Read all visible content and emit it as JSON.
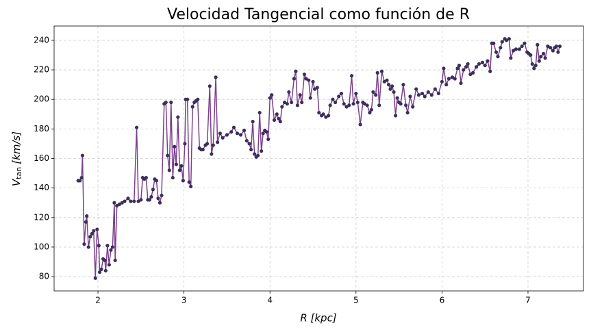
{
  "chart_data": {
    "type": "line",
    "title": "Velocidad Tangencial como función de R",
    "xlabel": "R [kpc]",
    "ylabel": [
      "V",
      "tan",
      "[km/s]"
    ],
    "line_color": "#7b3f8c",
    "marker_color": "#3a2f5b",
    "grid": true,
    "xlim": [
      1.49,
      7.645
    ],
    "ylim": [
      70.3,
      249.7
    ],
    "xticks": [
      2,
      3,
      4,
      5,
      6,
      7
    ],
    "yticks": [
      80,
      100,
      120,
      140,
      160,
      180,
      200,
      220,
      240
    ],
    "x": [
      1.77,
      1.79,
      1.81,
      1.82,
      1.84,
      1.86,
      1.87,
      1.89,
      1.91,
      1.93,
      1.95,
      1.97,
      1.99,
      2.01,
      2.02,
      2.04,
      2.06,
      2.08,
      2.09,
      2.11,
      2.13,
      2.15,
      2.17,
      2.19,
      2.2,
      2.22,
      2.25,
      2.28,
      2.31,
      2.35,
      2.38,
      2.42,
      2.45,
      2.47,
      2.5,
      2.52,
      2.54,
      2.56,
      2.58,
      2.6,
      2.62,
      2.64,
      2.66,
      2.68,
      2.7,
      2.72,
      2.74,
      2.77,
      2.79,
      2.81,
      2.83,
      2.85,
      2.87,
      2.89,
      2.91,
      2.93,
      2.95,
      2.97,
      2.99,
      3.01,
      3.02,
      3.04,
      3.06,
      3.08,
      3.1,
      3.12,
      3.14,
      3.16,
      3.18,
      3.2,
      3.22,
      3.25,
      3.27,
      3.3,
      3.32,
      3.34,
      3.37,
      3.39,
      3.42,
      3.45,
      3.5,
      3.55,
      3.58,
      3.62,
      3.66,
      3.7,
      3.73,
      3.76,
      3.78,
      3.8,
      3.82,
      3.84,
      3.86,
      3.88,
      3.9,
      3.92,
      3.94,
      3.96,
      3.98,
      4.0,
      4.02,
      4.05,
      4.08,
      4.1,
      4.12,
      4.14,
      4.17,
      4.2,
      4.22,
      4.25,
      4.28,
      4.3,
      4.32,
      4.35,
      4.37,
      4.4,
      4.42,
      4.45,
      4.47,
      4.5,
      4.52,
      4.55,
      4.57,
      4.6,
      4.62,
      4.65,
      4.68,
      4.7,
      4.73,
      4.76,
      4.8,
      4.83,
      4.86,
      4.89,
      4.92,
      4.95,
      4.97,
      5.0,
      5.02,
      5.05,
      5.08,
      5.1,
      5.13,
      5.16,
      5.18,
      5.2,
      5.23,
      5.25,
      5.27,
      5.3,
      5.33,
      5.36,
      5.38,
      5.4,
      5.42,
      5.44,
      5.46,
      5.48,
      5.5,
      5.52,
      5.55,
      5.58,
      5.6,
      5.63,
      5.66,
      5.7,
      5.73,
      5.77,
      5.8,
      5.84,
      5.88,
      5.92,
      5.96,
      6.0,
      6.02,
      6.05,
      6.08,
      6.12,
      6.15,
      6.18,
      6.2,
      6.22,
      6.25,
      6.28,
      6.3,
      6.33,
      6.36,
      6.4,
      6.43,
      6.47,
      6.5,
      6.53,
      6.56,
      6.58,
      6.6,
      6.63,
      6.65,
      6.68,
      6.7,
      6.73,
      6.75,
      6.78,
      6.8,
      6.83,
      6.86,
      6.9,
      6.93,
      6.96,
      6.99,
      7.01,
      7.03,
      7.05,
      7.07,
      7.09,
      7.11,
      7.13,
      7.15,
      7.18,
      7.2,
      7.23,
      7.26,
      7.29,
      7.31,
      7.33,
      7.35,
      7.37
    ],
    "values": [
      145,
      145,
      147,
      162,
      102,
      117,
      121,
      100,
      107,
      109,
      111,
      79,
      112,
      101,
      83,
      85,
      92,
      91,
      84,
      101,
      88,
      98,
      100,
      130,
      91,
      128,
      129,
      130,
      131,
      133,
      131,
      131,
      181,
      131,
      132,
      147,
      146,
      147,
      132,
      132,
      134,
      139,
      146,
      145,
      133,
      130,
      135,
      197,
      198,
      162,
      152,
      198,
      147,
      168,
      156,
      188,
      152,
      155,
      145,
      170,
      200,
      200,
      144,
      141,
      195,
      198,
      199,
      200,
      167,
      166,
      166,
      169,
      170,
      209,
      163,
      169,
      215,
      171,
      177,
      174,
      176,
      178,
      181,
      177,
      176,
      179,
      172,
      170,
      166,
      185,
      163,
      161,
      162,
      191,
      165,
      177,
      179,
      178,
      173,
      201,
      203,
      186,
      190,
      187,
      185,
      195,
      198,
      197,
      205,
      198,
      214,
      219,
      196,
      203,
      198,
      217,
      214,
      213,
      201,
      212,
      207,
      208,
      191,
      189,
      190,
      188,
      189,
      196,
      200,
      198,
      202,
      204,
      197,
      195,
      196,
      216,
      197,
      204,
      198,
      183,
      198,
      197,
      196,
      191,
      193,
      205,
      203,
      218,
      196,
      219,
      212,
      213,
      210,
      207,
      209,
      205,
      189,
      201,
      198,
      197,
      210,
      196,
      191,
      202,
      195,
      207,
      203,
      204,
      202,
      205,
      203,
      207,
      204,
      212,
      221,
      210,
      214,
      215,
      214,
      221,
      223,
      211,
      220,
      222,
      224,
      217,
      218,
      222,
      224,
      225,
      223,
      226,
      219,
      238,
      238,
      232,
      229,
      235,
      239,
      241,
      240,
      241,
      228,
      233,
      234,
      234,
      236,
      238,
      232,
      231,
      230,
      224,
      221,
      223,
      237,
      226,
      229,
      231,
      228,
      236,
      235,
      233,
      235,
      236,
      232,
      236
    ]
  }
}
